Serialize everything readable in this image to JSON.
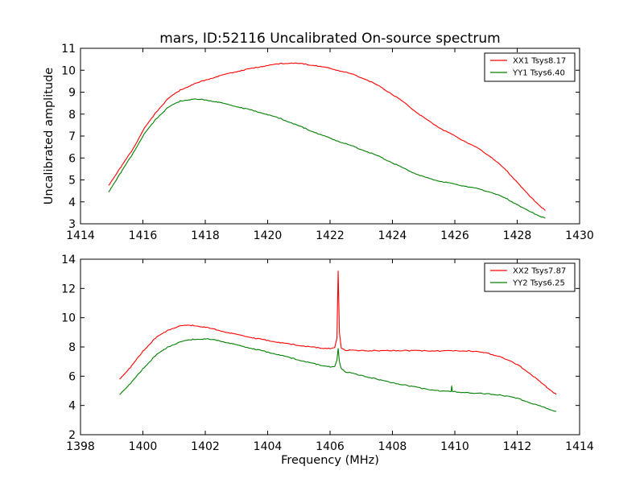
{
  "figure": {
    "title": "mars, ID:52116 Uncalibrated On-source spectrum"
  },
  "chart_data": [
    {
      "type": "line",
      "title": "mars, ID:52116 Uncalibrated On-source spectrum",
      "xlabel": "",
      "ylabel": "Uncalibrated amplitude",
      "xlim": [
        1414,
        1430
      ],
      "ylim": [
        3,
        11
      ],
      "xticks": [
        "1414",
        "1416",
        "1418",
        "1420",
        "1422",
        "1424",
        "1426",
        "1428",
        "1430"
      ],
      "yticks": [
        "3",
        "4",
        "5",
        "6",
        "7",
        "8",
        "9",
        "10",
        "11"
      ],
      "grid": false,
      "legend_position": "top-right",
      "series": [
        {
          "name": "XX1 Tsys8.17",
          "color": "#ff0000",
          "x": [
            1414.9,
            1415.3,
            1415.7,
            1416.0,
            1416.4,
            1416.8,
            1417.2,
            1417.6,
            1418.0,
            1418.4,
            1418.8,
            1419.2,
            1419.6,
            1420.0,
            1420.4,
            1420.8,
            1421.2,
            1421.6,
            1422.0,
            1422.4,
            1422.8,
            1423.2,
            1423.6,
            1424.0,
            1424.4,
            1424.8,
            1425.2,
            1425.6,
            1426.0,
            1426.4,
            1426.8,
            1427.2,
            1427.6,
            1428.0,
            1428.4,
            1428.9
          ],
          "y": [
            4.75,
            5.6,
            6.45,
            7.25,
            8.05,
            8.7,
            9.1,
            9.35,
            9.55,
            9.72,
            9.88,
            10.0,
            10.12,
            10.22,
            10.3,
            10.33,
            10.28,
            10.2,
            10.08,
            9.95,
            9.78,
            9.55,
            9.25,
            8.9,
            8.5,
            8.05,
            7.65,
            7.3,
            7.0,
            6.7,
            6.4,
            6.0,
            5.5,
            4.9,
            4.25,
            3.6
          ]
        },
        {
          "name": "YY1 Tsys6.40",
          "color": "#008000",
          "x": [
            1414.9,
            1415.3,
            1415.7,
            1416.0,
            1416.4,
            1416.8,
            1417.2,
            1417.6,
            1418.0,
            1418.4,
            1418.8,
            1419.2,
            1419.6,
            1420.0,
            1420.4,
            1420.8,
            1421.2,
            1421.6,
            1422.0,
            1422.4,
            1422.8,
            1423.2,
            1423.6,
            1424.0,
            1424.4,
            1424.8,
            1425.2,
            1425.6,
            1426.0,
            1426.4,
            1426.8,
            1427.2,
            1427.6,
            1428.0,
            1428.4,
            1428.9
          ],
          "y": [
            4.45,
            5.35,
            6.25,
            7.0,
            7.75,
            8.3,
            8.6,
            8.68,
            8.65,
            8.55,
            8.42,
            8.28,
            8.14,
            7.98,
            7.8,
            7.58,
            7.35,
            7.12,
            6.9,
            6.7,
            6.5,
            6.28,
            6.05,
            5.78,
            5.5,
            5.25,
            5.05,
            4.92,
            4.8,
            4.7,
            4.58,
            4.42,
            4.18,
            3.88,
            3.55,
            3.25
          ]
        }
      ]
    },
    {
      "type": "line",
      "title": "",
      "xlabel": "Frequency (MHz)",
      "ylabel": "",
      "xlim": [
        1398,
        1414
      ],
      "ylim": [
        2,
        14
      ],
      "xticks": [
        "1398",
        "1400",
        "1402",
        "1404",
        "1406",
        "1408",
        "1410",
        "1412",
        "1414"
      ],
      "yticks": [
        "2",
        "4",
        "6",
        "8",
        "10",
        "12",
        "14"
      ],
      "grid": false,
      "legend_position": "top-right",
      "series": [
        {
          "name": "XX2 Tsys7.87",
          "color": "#ff0000",
          "x": [
            1399.25,
            1399.6,
            1400.0,
            1400.4,
            1400.8,
            1401.2,
            1401.6,
            1402.0,
            1402.4,
            1402.8,
            1403.2,
            1403.6,
            1404.0,
            1404.4,
            1404.8,
            1405.2,
            1405.6,
            1406.0,
            1406.15,
            1406.22,
            1406.26,
            1406.3,
            1406.36,
            1406.5,
            1407.0,
            1407.5,
            1408.0,
            1408.5,
            1409.0,
            1409.5,
            1410.0,
            1410.5,
            1411.0,
            1411.5,
            1412.0,
            1412.4,
            1412.8,
            1413.25
          ],
          "y": [
            5.8,
            6.6,
            7.7,
            8.6,
            9.15,
            9.45,
            9.48,
            9.35,
            9.15,
            8.95,
            8.78,
            8.6,
            8.45,
            8.3,
            8.17,
            8.05,
            7.95,
            7.9,
            7.95,
            8.6,
            13.2,
            9.0,
            7.9,
            7.78,
            7.75,
            7.74,
            7.75,
            7.75,
            7.74,
            7.73,
            7.75,
            7.72,
            7.6,
            7.3,
            6.8,
            6.2,
            5.5,
            4.75
          ]
        },
        {
          "name": "YY2 Tsys6.25",
          "color": "#008000",
          "x": [
            1399.25,
            1399.6,
            1400.0,
            1400.4,
            1400.8,
            1401.2,
            1401.6,
            1402.0,
            1402.4,
            1402.8,
            1403.2,
            1403.6,
            1404.0,
            1404.4,
            1404.8,
            1405.2,
            1405.6,
            1406.0,
            1406.15,
            1406.22,
            1406.26,
            1406.3,
            1406.36,
            1406.5,
            1407.0,
            1407.5,
            1408.0,
            1408.5,
            1409.0,
            1409.5,
            1409.88,
            1409.9,
            1409.92,
            1410.5,
            1411.0,
            1411.5,
            1412.0,
            1412.4,
            1412.8,
            1413.25
          ],
          "y": [
            4.75,
            5.5,
            6.5,
            7.4,
            8.0,
            8.35,
            8.52,
            8.55,
            8.45,
            8.25,
            8.05,
            7.85,
            7.65,
            7.45,
            7.22,
            7.0,
            6.8,
            6.65,
            6.65,
            7.1,
            7.9,
            7.0,
            6.5,
            6.3,
            6.05,
            5.8,
            5.55,
            5.35,
            5.15,
            5.0,
            4.95,
            5.35,
            4.95,
            4.85,
            4.8,
            4.7,
            4.5,
            4.2,
            3.9,
            3.6
          ]
        }
      ]
    }
  ]
}
